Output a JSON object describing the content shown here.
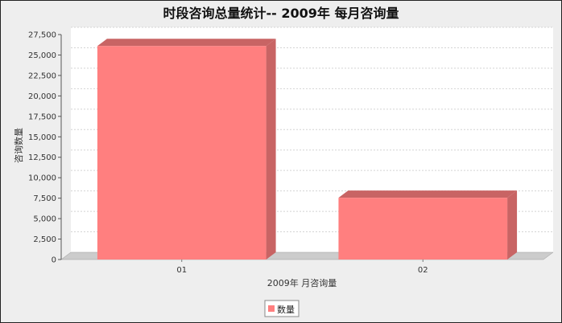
{
  "chart_data": {
    "type": "bar",
    "title": "时段咨询总量统计-- 2009年 每月咨询量",
    "xlabel": "2009年  月咨询量",
    "ylabel": "咨询数量",
    "categories": [
      "01",
      "02"
    ],
    "series": [
      {
        "name": "数量",
        "values": [
          26100,
          7550
        ]
      }
    ],
    "ylim": [
      0,
      27500
    ],
    "yticks": [
      0,
      2500,
      5000,
      7500,
      10000,
      12500,
      15000,
      17500,
      20000,
      22500,
      25000,
      27500
    ],
    "ytick_labels": [
      "0",
      "2,500",
      "5,000",
      "7,500",
      "10,000",
      "12,500",
      "15,000",
      "17,500",
      "20,000",
      "22,500",
      "25,000",
      "27,500"
    ],
    "grid": true,
    "legend": "bottom",
    "bar_color": "#ff7f7f",
    "bar_top_color": "#c86464",
    "bar_side_color": "#c86464"
  }
}
